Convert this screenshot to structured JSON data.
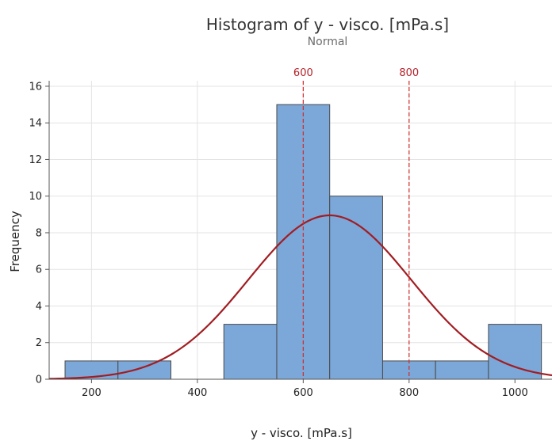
{
  "chart_data": {
    "type": "bar",
    "subtype": "histogram",
    "title": "Histogram of y - visco. [mPa.s]",
    "subtitle": "Normal",
    "xlabel": "y - visco. [mPa.s]",
    "ylabel": "Frequency",
    "xlim": [
      120,
      1070
    ],
    "ylim": [
      0,
      16.3
    ],
    "xticks": [
      200,
      400,
      600,
      800,
      1000
    ],
    "yticks": [
      0,
      2,
      4,
      6,
      8,
      10,
      12,
      14,
      16
    ],
    "grid": true,
    "bin_width": 100,
    "bins": [
      {
        "center": 200,
        "count": 1
      },
      {
        "center": 300,
        "count": 1
      },
      {
        "center": 400,
        "count": 0
      },
      {
        "center": 500,
        "count": 3
      },
      {
        "center": 600,
        "count": 15
      },
      {
        "center": 700,
        "count": 10
      },
      {
        "center": 800,
        "count": 1
      },
      {
        "center": 900,
        "count": 1
      },
      {
        "center": 1000,
        "count": 3
      }
    ],
    "normal_fit": {
      "mean": 650,
      "stdev": 154,
      "peak_frequency": 8.95
    },
    "reference_lines": [
      {
        "x": 600,
        "label": "600"
      },
      {
        "x": 800,
        "label": "800"
      }
    ],
    "colors": {
      "bar_fill": "#7ba7d9",
      "bar_stroke": "#4a4a4a",
      "curve": "#a11d22",
      "reference_line": "#d42a2a",
      "grid": "#e3e3e3"
    }
  }
}
